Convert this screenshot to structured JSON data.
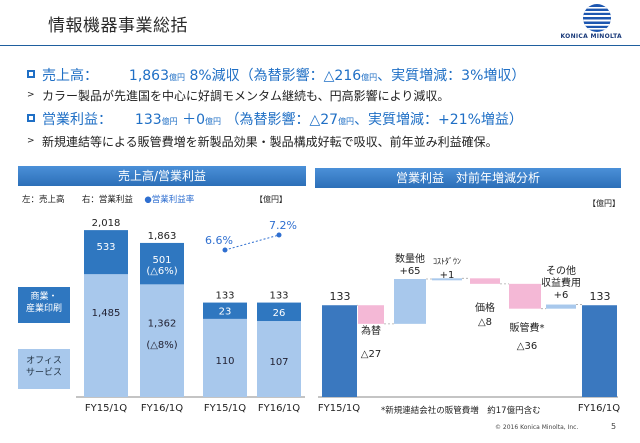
{
  "header": {
    "title": "情報機器事業総括",
    "brand": "KONICA MINOLTA"
  },
  "summary": {
    "sales_label": "売上高：",
    "sales_value": "1,863",
    "sales_unit": "億円",
    "sales_change": "8%減収（為替影響：△216",
    "sales_change_unit": "億円",
    "sales_change_tail": "、実質増減：3%増収）",
    "sales_note": "カラー製品が先進国を中心に好調モメンタム継続も、円高影響により減収。",
    "profit_label": "営業利益：",
    "profit_value": "133",
    "profit_unit": "億円",
    "profit_delta": "＋0",
    "profit_delta_unit": "億円",
    "profit_change": "（為替影響：△27",
    "profit_change_unit": "億円",
    "profit_change_tail": "、実質増減：+21%増益）",
    "profit_note": "新規連結等による販管費増を新製品効果・製品構成好転で吸収、前年並み利益確保。"
  },
  "left_panel": {
    "title": "売上高/営業利益",
    "legend_left": "左：売上高",
    "legend_right": "右：営業利益",
    "legend_rate": "営業利益率",
    "unit": "【億円】",
    "segment_business": "商業・\n産業印刷",
    "segment_office": "オフィス\nサービス"
  },
  "right_panel": {
    "title": "営業利益　対前年増減分析",
    "unit": "【億円】",
    "footnote": "*新規連結会社の販管費増　約17億円含む"
  },
  "chart_data": [
    {
      "type": "bar",
      "title": "売上高/営業利益",
      "categories": [
        "FY15/1Q",
        "FY16/1Q",
        "FY15/1Q",
        "FY16/1Q"
      ],
      "series": [
        {
          "name": "オフィスサービス",
          "values": [
            1485,
            1362,
            110,
            107
          ]
        },
        {
          "name": "商業・産業印刷",
          "values": [
            533,
            501,
            23,
            26
          ]
        }
      ],
      "totals": [
        2018,
        1863,
        133,
        133
      ],
      "annotations": [
        "(△6%)",
        "(△8%)"
      ],
      "line_series": {
        "name": "営業利益率",
        "values": [
          6.6,
          7.2
        ],
        "labels": [
          "6.6%",
          "7.2%"
        ]
      },
      "display": {
        "sales_totals": [
          "2,018",
          "1,863"
        ],
        "sales_business": [
          "533",
          "501"
        ],
        "sales_office": [
          "1,485",
          "1,362"
        ],
        "profit_totals": [
          "133",
          "133"
        ],
        "profit_business": [
          "23",
          "26"
        ],
        "profit_office": [
          "110",
          "107"
        ]
      },
      "colors": {
        "business": "#2f77c0",
        "office": "#a8c8ec",
        "rate": "#2f6fd0"
      }
    },
    {
      "type": "bar",
      "title": "営業利益　対前年増減分析",
      "categories": [
        "FY15/1Q",
        "為替",
        "数量他",
        "コストダウン",
        "価格",
        "販管費*",
        "その他収益費用",
        "FY16/1Q"
      ],
      "values": [
        133,
        -27,
        65,
        1,
        -8,
        -36,
        6,
        133
      ],
      "labels": {
        "start": "133",
        "end": "133",
        "fx_name": "為替",
        "fx_val": "△27",
        "vol_name": "数量他",
        "vol_val": "+65",
        "cost_name": "ｺｽﾄﾀﾞｳﾝ",
        "cost_val": "+1",
        "price_name": "価格",
        "price_val": "△8",
        "sga_name": "販管費*",
        "sga_val": "△36",
        "other_name1": "その他",
        "other_name2": "収益費用",
        "other_val": "+6"
      },
      "colors": {
        "base": "#3a78bf",
        "increase": "#a8c8ec",
        "decrease": "#f4b8d6"
      }
    }
  ],
  "footer": {
    "copyright": "© 2016 Konica Minolta, Inc.",
    "page": "5"
  }
}
